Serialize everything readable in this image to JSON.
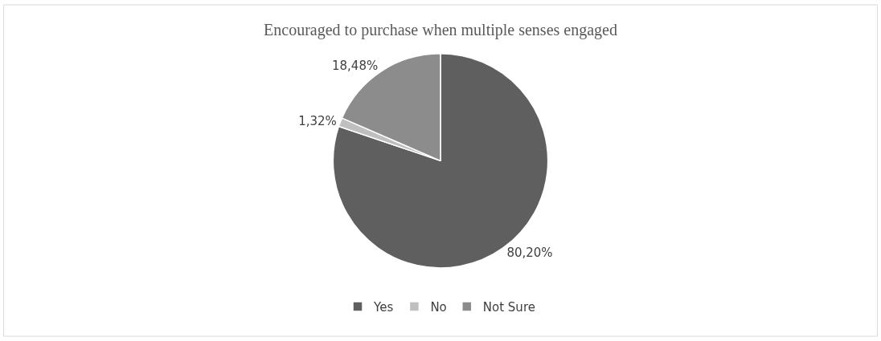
{
  "chart_data": {
    "type": "pie",
    "title": "Encouraged to purchase when multiple senses engaged",
    "categories": [
      "Yes",
      "No",
      "Not Sure"
    ],
    "values": [
      80.2,
      1.32,
      18.48
    ],
    "value_labels": [
      "80,20%",
      "1,32%",
      "18,48%"
    ],
    "colors": [
      "#5f5f5f",
      "#bfbfbf",
      "#8c8c8c"
    ],
    "legend": "bottom"
  }
}
